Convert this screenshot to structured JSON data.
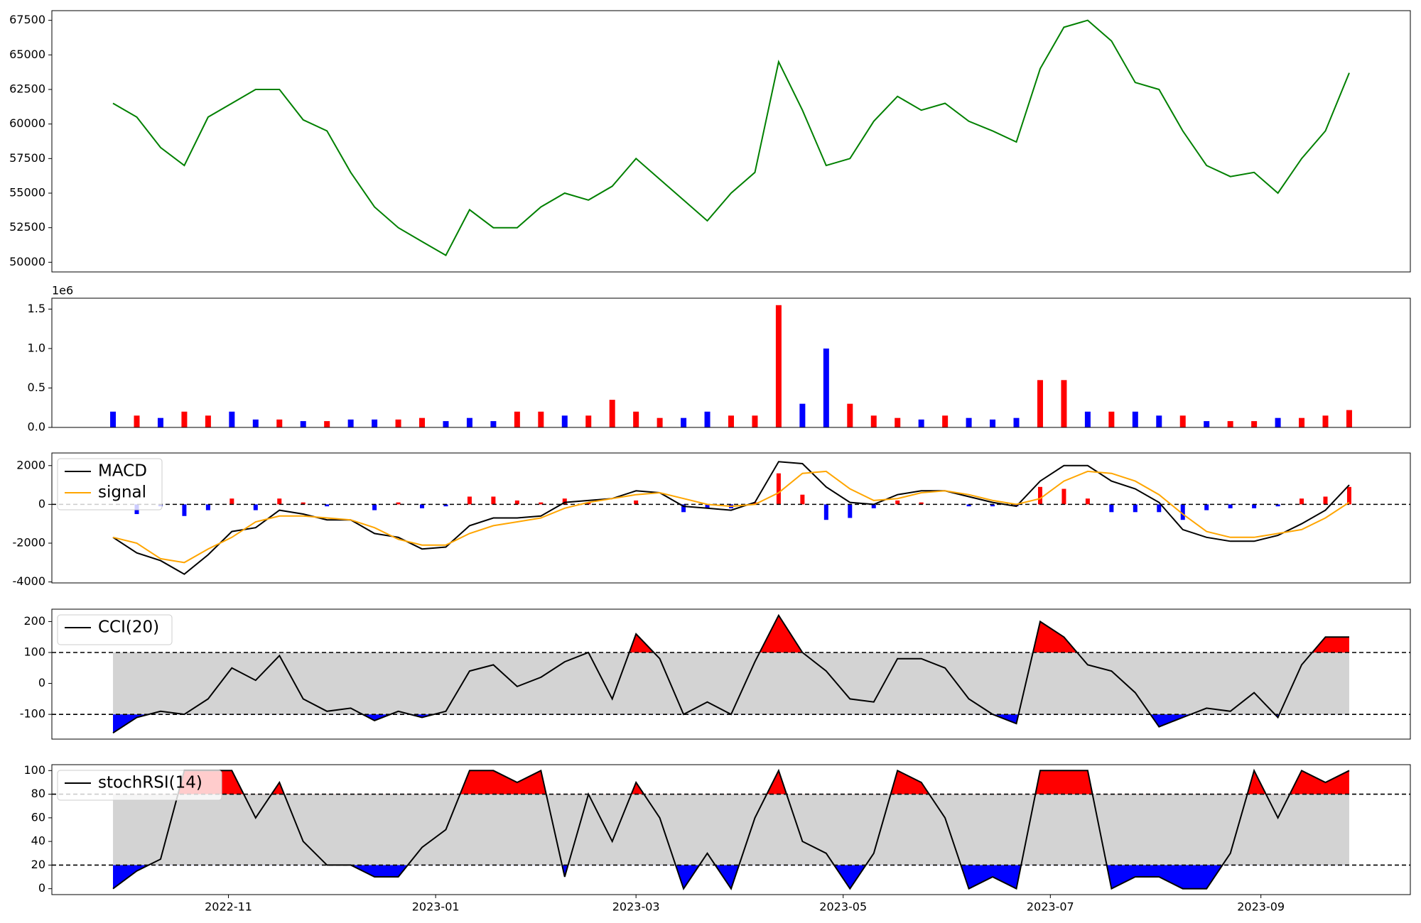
{
  "chart_data": [
    {
      "type": "line",
      "color": "#008000",
      "x": [
        18,
        25,
        32,
        39,
        46,
        53,
        60,
        67,
        74,
        81,
        88,
        95,
        102,
        109,
        116,
        123,
        130,
        137,
        144,
        151,
        158,
        165,
        172,
        179,
        186,
        193,
        200,
        207,
        214,
        221,
        228,
        235,
        242,
        249,
        256,
        263,
        270,
        277,
        284,
        291,
        298,
        305,
        312,
        319,
        326,
        333,
        340,
        347,
        354,
        361,
        368,
        375,
        382
      ],
      "xlim": [
        0,
        400
      ],
      "values": [
        61500,
        60500,
        58300,
        57000,
        60500,
        61500,
        62500,
        62500,
        60300,
        59500,
        56500,
        54000,
        52500,
        51500,
        50500,
        53800,
        52500,
        52500,
        54000,
        55000,
        54500,
        55500,
        57500,
        56000,
        54500,
        53000,
        55000,
        56500,
        64500,
        61000,
        57000,
        57500,
        60200,
        62000,
        61000,
        61500,
        60200,
        59500,
        58700,
        64000,
        67000,
        67500,
        66000,
        63000,
        62500,
        59500,
        57000,
        56200,
        56500,
        55000,
        57500,
        59500,
        63700
      ],
      "ylim": [
        49300,
        68200
      ],
      "yticks": [
        50000,
        52500,
        55000,
        57500,
        60000,
        62500,
        65000,
        67500
      ]
    },
    {
      "type": "bar",
      "offset_label": "1e6",
      "values": [
        200000,
        150000,
        120000,
        200000,
        150000,
        200000,
        100000,
        100000,
        80000,
        80000,
        100000,
        100000,
        100000,
        120000,
        80000,
        120000,
        80000,
        200000,
        200000,
        150000,
        150000,
        350000,
        200000,
        120000,
        120000,
        200000,
        150000,
        150000,
        1550000,
        300000,
        1000000,
        300000,
        150000,
        120000,
        100000,
        150000,
        120000,
        100000,
        120000,
        600000,
        600000,
        200000,
        200000,
        200000,
        150000,
        150000,
        80000,
        80000,
        80000,
        120000,
        120000,
        150000,
        220000
      ],
      "colors": [
        "blue",
        "red",
        "blue",
        "red",
        "red",
        "blue",
        "blue",
        "red",
        "blue",
        "red",
        "blue",
        "blue",
        "red",
        "red",
        "blue",
        "blue",
        "blue",
        "red",
        "red",
        "blue",
        "red",
        "red",
        "red",
        "red",
        "blue",
        "blue",
        "red",
        "red",
        "red",
        "blue",
        "blue",
        "red",
        "red",
        "red",
        "blue",
        "red",
        "blue",
        "blue",
        "blue",
        "red",
        "red",
        "blue",
        "red",
        "blue",
        "blue",
        "red",
        "blue",
        "red",
        "red",
        "blue",
        "red",
        "red",
        "red"
      ],
      "ylim": [
        0,
        1638000
      ],
      "yticks": [
        {
          "value": 0,
          "label": "0.0"
        },
        {
          "value": 500000,
          "label": "0.5"
        },
        {
          "value": 1000000,
          "label": "1.0"
        },
        {
          "value": 1500000,
          "label": "1.5"
        }
      ]
    },
    {
      "type": "macd",
      "hline": 0,
      "up_color": "red",
      "down_color": "blue",
      "series": [
        {
          "name": "MACD",
          "color": "#000000",
          "values": [
            -1700,
            -2500,
            -2900,
            -3600,
            -2600,
            -1400,
            -1200,
            -300,
            -500,
            -800,
            -800,
            -1500,
            -1700,
            -2300,
            -2200,
            -1100,
            -700,
            -700,
            -600,
            100,
            200,
            300,
            700,
            600,
            -100,
            -200,
            -300,
            100,
            2200,
            2100,
            900,
            100,
            0,
            500,
            700,
            700,
            400,
            100,
            -100,
            1200,
            2000,
            2000,
            1200,
            800,
            100,
            -1300,
            -1700,
            -1900,
            -1900,
            -1600,
            -1000,
            -300,
            1000
          ]
        },
        {
          "name": "signal",
          "color": "orange",
          "values": [
            -1700,
            -2000,
            -2800,
            -3000,
            -2300,
            -1700,
            -900,
            -600,
            -600,
            -700,
            -800,
            -1200,
            -1800,
            -2100,
            -2100,
            -1500,
            -1100,
            -900,
            -700,
            -200,
            100,
            300,
            500,
            600,
            300,
            0,
            -100,
            0,
            600,
            1600,
            1700,
            800,
            200,
            300,
            600,
            700,
            500,
            200,
            0,
            300,
            1200,
            1700,
            1600,
            1200,
            500,
            -500,
            -1400,
            -1700,
            -1700,
            -1500,
            -1300,
            -700,
            100
          ]
        },
        {
          "kind": "bar",
          "values": [
            0,
            -500,
            -100,
            -600,
            -300,
            300,
            -300,
            300,
            100,
            -100,
            0,
            -300,
            100,
            -200,
            -100,
            400,
            400,
            200,
            100,
            300,
            100,
            0,
            200,
            0,
            -400,
            -200,
            -200,
            100,
            1600,
            500,
            -800,
            -700,
            -200,
            200,
            100,
            0,
            -100,
            -100,
            -100,
            900,
            800,
            300,
            -400,
            -400,
            -400,
            -800,
            -300,
            -200,
            -200,
            -100,
            300,
            400,
            900
          ]
        }
      ],
      "ylim": [
        -4050,
        2650
      ],
      "yticks": [
        -4000,
        -2000,
        0,
        2000
      ]
    },
    {
      "type": "oscillator",
      "bands": [
        -100,
        100
      ],
      "band_color": "#d3d3d3",
      "upper_color": "red",
      "lower_color": "blue",
      "series": [
        {
          "name": "CCI(20)",
          "color": "#000000",
          "values": [
            -160,
            -110,
            -90,
            -100,
            -50,
            50,
            10,
            90,
            -50,
            -90,
            -80,
            -120,
            -90,
            -110,
            -90,
            40,
            60,
            -10,
            20,
            70,
            100,
            -50,
            160,
            80,
            -100,
            -60,
            -100,
            70,
            220,
            100,
            40,
            -50,
            -60,
            80,
            80,
            50,
            -50,
            -100,
            -130,
            200,
            150,
            60,
            40,
            -30,
            -140,
            -110,
            -80,
            -90,
            -30,
            -110,
            60,
            150,
            150
          ]
        }
      ],
      "ylim": [
        -180,
        240
      ],
      "yticks": [
        -100,
        0,
        100,
        200
      ]
    },
    {
      "type": "oscillator",
      "bands": [
        20,
        80
      ],
      "band_color": "#d3d3d3",
      "upper_color": "red",
      "lower_color": "blue",
      "series": [
        {
          "name": "stochRSI(14)",
          "color": "#000000",
          "values": [
            0,
            15,
            25,
            100,
            100,
            100,
            60,
            90,
            40,
            20,
            20,
            10,
            10,
            35,
            50,
            100,
            100,
            90,
            100,
            10,
            80,
            40,
            90,
            60,
            0,
            30,
            0,
            60,
            100,
            40,
            30,
            0,
            30,
            100,
            90,
            60,
            0,
            10,
            0,
            100,
            100,
            100,
            0,
            10,
            10,
            0,
            0,
            30,
            100,
            60,
            100,
            90,
            100
          ]
        }
      ],
      "ylim": [
        -5,
        105
      ],
      "yticks": [
        0,
        20,
        40,
        60,
        80,
        100
      ],
      "xticks": [
        {
          "value": 52,
          "label": "2022-11"
        },
        {
          "value": 113,
          "label": "2023-01"
        },
        {
          "value": 172,
          "label": "2023-03"
        },
        {
          "value": 233,
          "label": "2023-05"
        },
        {
          "value": 294,
          "label": "2023-07"
        },
        {
          "value": 356,
          "label": "2023-09"
        }
      ]
    }
  ]
}
